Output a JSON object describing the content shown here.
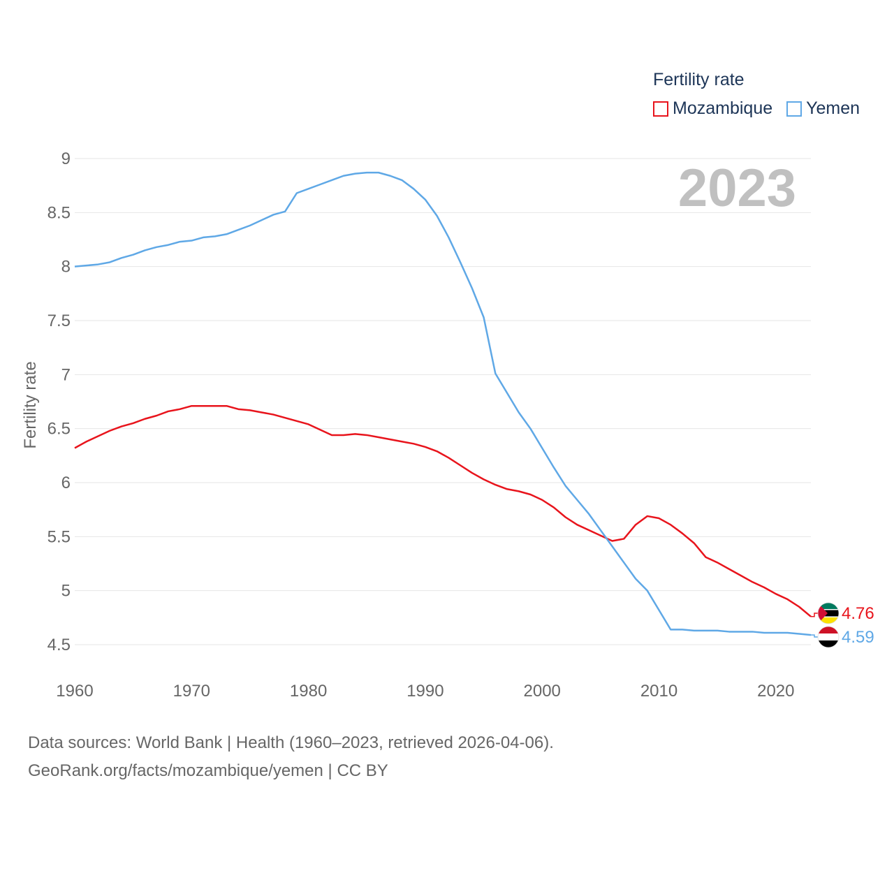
{
  "chart_data": {
    "type": "line",
    "title": "",
    "legend_title": "Fertility rate",
    "legend_position": "top-right",
    "year_label": "2023",
    "xlabel": "",
    "ylabel": "Fertility rate",
    "xlim": [
      1960,
      2023
    ],
    "ylim": [
      4.5,
      9
    ],
    "x_ticks": [
      1960,
      1970,
      1980,
      1990,
      2000,
      2010,
      2020
    ],
    "x_tick_labels": [
      "1960",
      "1970",
      "1980",
      "1990",
      "2000",
      "2010",
      "2020"
    ],
    "y_ticks": [
      4.5,
      5,
      5.5,
      6,
      6.5,
      7,
      7.5,
      8,
      8.5,
      9
    ],
    "y_tick_labels": [
      "4.5",
      "5",
      "5.5",
      "6",
      "6.5",
      "7",
      "7.5",
      "8",
      "8.5",
      "9"
    ],
    "grid": true,
    "x": [
      1960,
      1961,
      1962,
      1963,
      1964,
      1965,
      1966,
      1967,
      1968,
      1969,
      1970,
      1971,
      1972,
      1973,
      1974,
      1975,
      1976,
      1977,
      1978,
      1979,
      1980,
      1981,
      1982,
      1983,
      1984,
      1985,
      1986,
      1987,
      1988,
      1989,
      1990,
      1991,
      1992,
      1993,
      1994,
      1995,
      1996,
      1997,
      1998,
      1999,
      2000,
      2001,
      2002,
      2003,
      2004,
      2005,
      2006,
      2007,
      2008,
      2009,
      2010,
      2011,
      2012,
      2013,
      2014,
      2015,
      2016,
      2017,
      2018,
      2019,
      2020,
      2021,
      2022,
      2023
    ],
    "series": [
      {
        "name": "Mozambique",
        "color": "#e8141c",
        "end_label": "4.76",
        "values": [
          6.32,
          6.38,
          6.43,
          6.48,
          6.52,
          6.55,
          6.59,
          6.62,
          6.66,
          6.68,
          6.71,
          6.71,
          6.71,
          6.71,
          6.68,
          6.67,
          6.65,
          6.63,
          6.6,
          6.57,
          6.54,
          6.49,
          6.44,
          6.44,
          6.45,
          6.44,
          6.42,
          6.4,
          6.38,
          6.36,
          6.33,
          6.29,
          6.23,
          6.16,
          6.09,
          6.03,
          5.98,
          5.94,
          5.92,
          5.89,
          5.84,
          5.77,
          5.68,
          5.61,
          5.56,
          5.51,
          5.46,
          5.48,
          5.61,
          5.69,
          5.67,
          5.61,
          5.53,
          5.44,
          5.31,
          5.26,
          5.2,
          5.14,
          5.08,
          5.03,
          4.97,
          4.92,
          4.85,
          4.76
        ]
      },
      {
        "name": "Yemen",
        "color": "#5fa8e6",
        "end_label": "4.59",
        "values": [
          8.0,
          8.01,
          8.02,
          8.04,
          8.08,
          8.11,
          8.15,
          8.18,
          8.2,
          8.23,
          8.24,
          8.27,
          8.28,
          8.3,
          8.34,
          8.38,
          8.43,
          8.48,
          8.51,
          8.68,
          8.72,
          8.76,
          8.8,
          8.84,
          8.86,
          8.87,
          8.87,
          8.84,
          8.8,
          8.72,
          8.62,
          8.47,
          8.27,
          8.04,
          7.8,
          7.53,
          7.01,
          6.83,
          6.65,
          6.5,
          6.32,
          6.14,
          5.97,
          5.84,
          5.71,
          5.56,
          5.41,
          5.26,
          5.11,
          5.0,
          4.82,
          4.64,
          4.64,
          4.63,
          4.63,
          4.63,
          4.62,
          4.62,
          4.62,
          4.61,
          4.61,
          4.61,
          4.6,
          4.59
        ]
      }
    ],
    "end_markers": [
      {
        "series": "Mozambique",
        "icon": "mozambique-flag-icon",
        "colors": [
          "#007a5e",
          "#000000",
          "#fce100",
          "#d21034",
          "#ffffff"
        ]
      },
      {
        "series": "Yemen",
        "icon": "yemen-flag-icon",
        "colors": [
          "#ce1126",
          "#ffffff",
          "#000000"
        ]
      }
    ]
  },
  "footer": {
    "line1": "Data sources: World Bank | Health (1960–2023, retrieved 2026-04-06).",
    "line2": "GeoRank.org/facts/mozambique/yemen | CC BY"
  },
  "colors": {
    "grid": "#e6e6e6",
    "tick_text": "#666666",
    "legend_text": "#1d3557",
    "year_label": "#c0c0c0"
  }
}
